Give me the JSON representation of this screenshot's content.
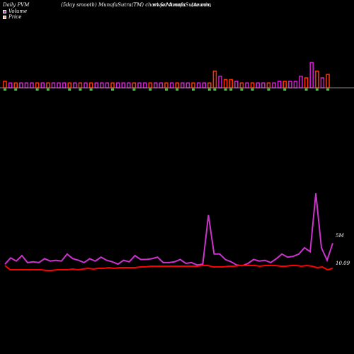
{
  "header": {
    "left": "Daily PVM",
    "center": "(5day smooth) MunafaSutra(TM) chart for Avonix",
    "site": "www.MunafaSutra.com",
    "right": "(Avonix,"
  },
  "legend": [
    {
      "label": "Volume",
      "color": "#d81bd8"
    },
    {
      "label": "Price",
      "color": "#ff9966"
    }
  ],
  "colors": {
    "background": "#000000",
    "volume_up": "#d81bd8",
    "volume_down_top": "#ff3300",
    "volume_down_bottom": "#33cc33",
    "volume_line": "#cc33cc",
    "price_line": "#ff0000",
    "baseline": "#888888"
  },
  "chart_data": [
    {
      "type": "bar",
      "title": "Volume bars",
      "values": [
        3,
        2,
        2,
        2,
        2,
        2,
        2,
        2,
        2,
        2,
        2,
        2,
        2,
        2,
        2,
        2,
        2,
        2,
        2,
        2,
        2,
        2,
        2,
        2,
        2,
        2,
        2,
        2,
        2,
        2,
        2,
        2,
        2,
        2,
        2,
        2,
        2,
        2,
        2,
        9,
        6,
        4,
        4,
        3,
        2,
        2,
        2,
        2,
        2,
        2,
        2,
        3,
        3,
        3,
        3,
        6,
        5,
        14,
        9,
        5,
        7
      ],
      "down_days": [
        0,
        2,
        6,
        8,
        12,
        14,
        16,
        20,
        24,
        27,
        30,
        32,
        35,
        38,
        39,
        41,
        42,
        44,
        46,
        49,
        52,
        56,
        58,
        60
      ]
    },
    {
      "type": "line",
      "title": "Volume / Price smooth lines",
      "series": [
        {
          "name": "Volume",
          "values": [
            9,
            17,
            13,
            20,
            11,
            12,
            11,
            16,
            13,
            14,
            13,
            22,
            16,
            14,
            11,
            16,
            13,
            18,
            14,
            12,
            9,
            14,
            12,
            20,
            15,
            15,
            16,
            18,
            11,
            11,
            12,
            15,
            10,
            11,
            8,
            9,
            72,
            22,
            22,
            15,
            12,
            8,
            7,
            10,
            15,
            13,
            14,
            11,
            16,
            22,
            18,
            19,
            22,
            30,
            25,
            100,
            30,
            14,
            36
          ]
        },
        {
          "name": "Price",
          "values": [
            9,
            3,
            3,
            3,
            3,
            3,
            3,
            3,
            2,
            2,
            3,
            3,
            3,
            4,
            3,
            4,
            5,
            4,
            5,
            5,
            6,
            5,
            6,
            6,
            6,
            6,
            7,
            7,
            8,
            8,
            8,
            8,
            8,
            8,
            8,
            8,
            8,
            8,
            9,
            9,
            7,
            7,
            7,
            8,
            8,
            9,
            9,
            9,
            9,
            8,
            9,
            9,
            9,
            8,
            8,
            9,
            9,
            8,
            9,
            8,
            6,
            7,
            3,
            5
          ]
        }
      ],
      "right_labels": [
        "5M",
        "10.09"
      ]
    }
  ]
}
